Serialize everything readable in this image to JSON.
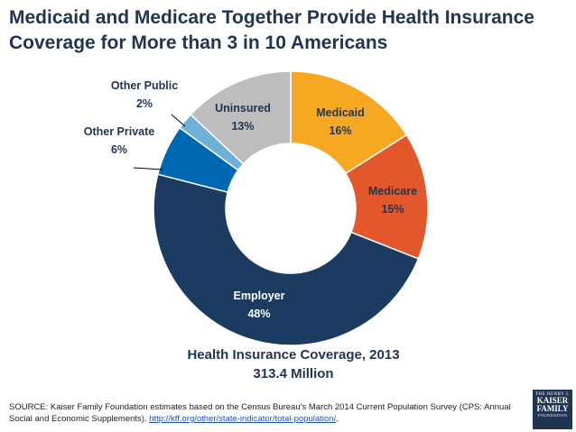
{
  "chart_data": {
    "type": "pie",
    "style": "donut",
    "title_lines": [
      "Medicaid and Medicare Together Provide Health Insurance",
      "Coverage for More than 3 in 10 Americans"
    ],
    "center_label_lines": [
      "Health Insurance Coverage, 2013",
      "313.4 Million"
    ],
    "slices": [
      {
        "name": "Medicaid",
        "value": 16,
        "label": "16%",
        "color": "#f7a823"
      },
      {
        "name": "Medicare",
        "value": 15,
        "label": "15%",
        "color": "#e2582c"
      },
      {
        "name": "Employer",
        "value": 48,
        "label": "48%",
        "color": "#1b3b60"
      },
      {
        "name": "Other Private",
        "value": 6,
        "label": "6%",
        "color": "#0068b3"
      },
      {
        "name": "Other Public",
        "value": 2,
        "label": "2%",
        "color": "#6fb0d8"
      },
      {
        "name": "Uninsured",
        "value": 13,
        "label": "13%",
        "color": "#bdbdbd"
      }
    ]
  },
  "source": {
    "text": "SOURCE: Kaiser Family Foundation estimates based on the Census Bureau's March 2014 Current Population Survey (CPS: Annual Social and Economic Supplements).",
    "link": "http://kff.org/other/state-indicator/total-population/",
    "tail": "."
  },
  "logo": {
    "line1": "THE HENRY J.",
    "line2": "KAISER",
    "line3": "FAMILY",
    "line4": "FOUNDATION"
  }
}
